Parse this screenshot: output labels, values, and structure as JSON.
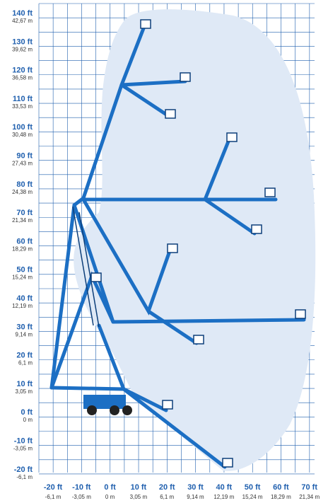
{
  "y_axis": {
    "ticks": [
      {
        "ft": "140 ft",
        "m": "42,67 m"
      },
      {
        "ft": "130 ft",
        "m": "39,62 m"
      },
      {
        "ft": "120 ft",
        "m": "36,58 m"
      },
      {
        "ft": "110 ft",
        "m": "33,53 m"
      },
      {
        "ft": "100 ft",
        "m": "30,48 m"
      },
      {
        "ft": "90 ft",
        "m": "27,43 m"
      },
      {
        "ft": "80 ft",
        "m": "24,38 m"
      },
      {
        "ft": "70 ft",
        "m": "21,34 m"
      },
      {
        "ft": "60 ft",
        "m": "18,29 m"
      },
      {
        "ft": "50 ft",
        "m": "15,24 m"
      },
      {
        "ft": "40 ft",
        "m": "12,19 m"
      },
      {
        "ft": "30 ft",
        "m": "9,14 m"
      },
      {
        "ft": "20 ft",
        "m": "6,1 m"
      },
      {
        "ft": "10 ft",
        "m": "3,05 m"
      },
      {
        "ft": "0 ft",
        "m": "0 m"
      },
      {
        "ft": "-10 ft",
        "m": "-3,05 m"
      },
      {
        "ft": "-20 ft",
        "m": "-6,1 m"
      }
    ]
  },
  "x_axis": {
    "ticks": [
      {
        "ft": "-20 ft",
        "m": "-6,1 m"
      },
      {
        "ft": "-10 ft",
        "m": "-3,05 m"
      },
      {
        "ft": "0 ft",
        "m": "0 m"
      },
      {
        "ft": "10 ft",
        "m": "3,05 m"
      },
      {
        "ft": "20 ft",
        "m": "6,1 m"
      },
      {
        "ft": "30 ft",
        "m": "9,14 m"
      },
      {
        "ft": "40 ft",
        "m": "12,19 m"
      },
      {
        "ft": "50 ft",
        "m": "15,24 m"
      },
      {
        "ft": "60 ft",
        "m": "18,29 m"
      },
      {
        "ft": "70 ft",
        "m": "21,34 m"
      }
    ]
  }
}
